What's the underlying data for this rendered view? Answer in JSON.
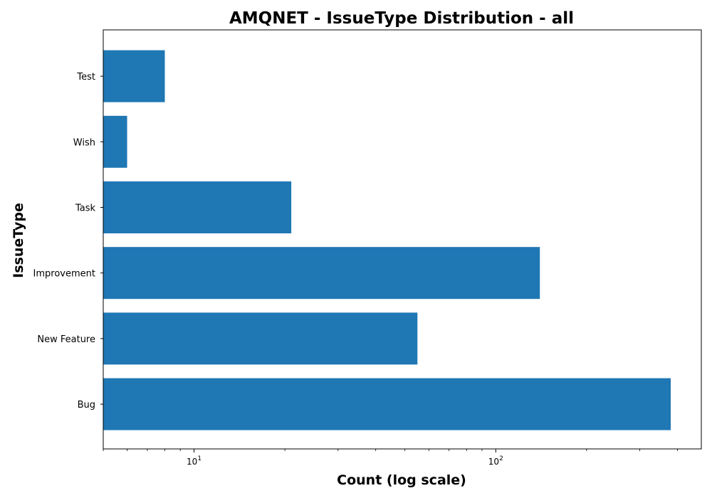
{
  "chart_data": {
    "type": "bar",
    "orientation": "horizontal",
    "title": "AMQNET - IssueType Distribution - all",
    "xlabel": "Count (log scale)",
    "ylabel": "IssueType",
    "xscale": "log",
    "xlim": [
      5,
      480
    ],
    "categories": [
      "Bug",
      "New Feature",
      "Improvement",
      "Task",
      "Wish",
      "Test"
    ],
    "values": [
      380,
      55,
      140,
      21,
      6,
      8
    ],
    "x_ticks": [
      {
        "base": "10",
        "exp": "1",
        "value": 10
      },
      {
        "base": "10",
        "exp": "2",
        "value": 100
      }
    ],
    "grid": false,
    "legend": false,
    "bar_color": "#1f77b4"
  }
}
